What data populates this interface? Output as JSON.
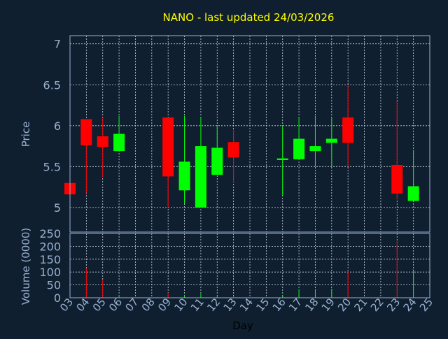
{
  "chart_data": {
    "type": "candlestick",
    "title": "NANO - last updated 24/03/2026",
    "xlabel": "Day",
    "ylabel_price": "Price",
    "ylabel_volume": "Volume (0000)",
    "x_ticks": [
      "03",
      "04",
      "05",
      "06",
      "07",
      "08",
      "09",
      "10",
      "11",
      "12",
      "13",
      "14",
      "15",
      "16",
      "17",
      "18",
      "19",
      "20",
      "21",
      "22",
      "23",
      "24",
      "25"
    ],
    "price_ticks": [
      5,
      5.5,
      6,
      6.5,
      7
    ],
    "price_range": [
      4.7,
      7.1
    ],
    "volume_ticks": [
      0,
      50,
      100,
      150,
      200,
      250
    ],
    "volume_range": [
      0,
      250
    ],
    "grid": true,
    "colors": {
      "up": "#00ff00",
      "down": "#ff0000",
      "background": "#0f1f30",
      "axis": "#9ab1d0",
      "title": "#ffff00"
    },
    "candles": [
      {
        "day": "03",
        "open": 5.3,
        "high": 5.3,
        "low": 5.16,
        "close": 5.16,
        "volume": 0
      },
      {
        "day": "04",
        "open": 6.08,
        "high": 6.08,
        "low": 5.18,
        "close": 5.76,
        "volume": 115
      },
      {
        "day": "05",
        "open": 5.87,
        "high": 6.1,
        "low": 5.37,
        "close": 5.74,
        "volume": 70
      },
      {
        "day": "06",
        "open": 5.69,
        "high": 6.12,
        "low": 5.69,
        "close": 5.9,
        "volume": 10
      },
      {
        "day": "09",
        "open": 6.1,
        "high": 6.1,
        "low": 5.0,
        "close": 5.38,
        "volume": 20
      },
      {
        "day": "10",
        "open": 5.21,
        "high": 6.12,
        "low": 5.05,
        "close": 5.56,
        "volume": 10
      },
      {
        "day": "11",
        "open": 5.0,
        "high": 6.1,
        "low": 5.0,
        "close": 5.75,
        "volume": 15
      },
      {
        "day": "12",
        "open": 5.4,
        "high": 6.0,
        "low": 5.4,
        "close": 5.73,
        "volume": 5
      },
      {
        "day": "13",
        "open": 5.8,
        "high": 5.95,
        "low": 5.3,
        "close": 5.61,
        "volume": 5
      },
      {
        "day": "16",
        "open": 5.58,
        "high": 6.0,
        "low": 5.15,
        "close": 5.6,
        "volume": 10
      },
      {
        "day": "17",
        "open": 5.59,
        "high": 6.1,
        "low": 5.59,
        "close": 5.84,
        "volume": 30
      },
      {
        "day": "18",
        "open": 5.69,
        "high": 6.12,
        "low": 5.5,
        "close": 5.75,
        "volume": 30
      },
      {
        "day": "19",
        "open": 5.79,
        "high": 6.1,
        "low": 5.5,
        "close": 5.84,
        "volume": 35
      },
      {
        "day": "20",
        "open": 6.1,
        "high": 6.48,
        "low": 5.5,
        "close": 5.79,
        "volume": 105
      },
      {
        "day": "23",
        "open": 5.52,
        "high": 6.3,
        "low": 5.1,
        "close": 5.17,
        "volume": 220
      },
      {
        "day": "24",
        "open": 5.08,
        "high": 5.7,
        "low": 5.08,
        "close": 5.26,
        "volume": 110
      }
    ]
  }
}
